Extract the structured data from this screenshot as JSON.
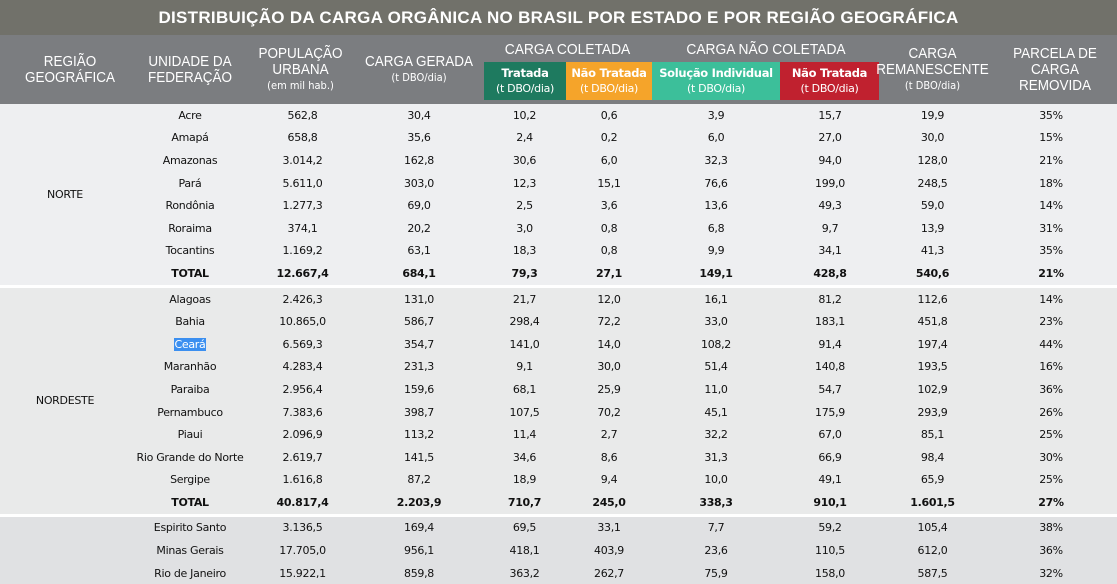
{
  "title": "DISTRIBUIÇÃO DA CARGA ORGÂNICA NO BRASIL POR ESTADO E POR REGIÃO GEOGRÁFICA",
  "headers": {
    "regiao": [
      "REGIÃO",
      "GEOGRÁFICA"
    ],
    "uf": [
      "UNIDADE DA",
      "FEDERAÇÃO"
    ],
    "pop": [
      "POPULAÇÃO",
      "URBANA"
    ],
    "pop_unit": "(em mil hab.)",
    "carga_gerada": "CARGA GERADA",
    "unit": "(t DBO/dia)",
    "coletada": "CARGA COLETADA",
    "nao_coletada": "CARGA NÃO COLETADA",
    "tratada": "Tratada",
    "nao_tratada": "Não Tratada",
    "solucao": "Solução Individual",
    "nao_tratada2": "Não Tratada",
    "remanescente": [
      "CARGA",
      "REMANESCENTE"
    ],
    "parcela": [
      "PARCELA DE",
      "CARGA",
      "REMOVIDA"
    ]
  },
  "colors": {
    "tratada": "#1e7a5f",
    "nao_tratada": "#f5a42a",
    "solucao": "#3cbf9a",
    "nao_tratada2": "#c0212f"
  },
  "regions": [
    {
      "name": "NORTE",
      "bg": "#eeeff1",
      "rows": [
        [
          "Acre",
          "562,8",
          "30,4",
          "10,2",
          "0,6",
          "3,9",
          "15,7",
          "19,9",
          "35%"
        ],
        [
          "Amapá",
          "658,8",
          "35,6",
          "2,4",
          "0,2",
          "6,0",
          "27,0",
          "30,0",
          "15%"
        ],
        [
          "Amazonas",
          "3.014,2",
          "162,8",
          "30,6",
          "6,0",
          "32,3",
          "94,0",
          "128,0",
          "21%"
        ],
        [
          "Pará",
          "5.611,0",
          "303,0",
          "12,3",
          "15,1",
          "76,6",
          "199,0",
          "248,5",
          "18%"
        ],
        [
          "Rondônia",
          "1.277,3",
          "69,0",
          "2,5",
          "3,6",
          "13,6",
          "49,3",
          "59,0",
          "14%"
        ],
        [
          "Roraima",
          "374,1",
          "20,2",
          "3,0",
          "0,8",
          "6,8",
          "9,7",
          "13,9",
          "31%"
        ],
        [
          "Tocantins",
          "1.169,2",
          "63,1",
          "18,3",
          "0,8",
          "9,9",
          "34,1",
          "41,3",
          "35%"
        ],
        [
          "TOTAL",
          "12.667,4",
          "684,1",
          "79,3",
          "27,1",
          "149,1",
          "428,8",
          "540,6",
          "21%"
        ]
      ]
    },
    {
      "name": "NORDESTE",
      "bg": "#e9eaea",
      "rows": [
        [
          "Alagoas",
          "2.426,3",
          "131,0",
          "21,7",
          "12,0",
          "16,1",
          "81,2",
          "112,6",
          "14%"
        ],
        [
          "Bahia",
          "10.865,0",
          "586,7",
          "298,4",
          "72,2",
          "33,0",
          "183,1",
          "451,8",
          "23%"
        ],
        [
          "Ceará",
          "6.569,3",
          "354,7",
          "141,0",
          "14,0",
          "108,2",
          "91,4",
          "197,4",
          "44%"
        ],
        [
          "Maranhão",
          "4.283,4",
          "231,3",
          "9,1",
          "30,0",
          "51,4",
          "140,8",
          "193,5",
          "16%"
        ],
        [
          "Paraiba",
          "2.956,4",
          "159,6",
          "68,1",
          "25,9",
          "11,0",
          "54,7",
          "102,9",
          "36%"
        ],
        [
          "Pernambuco",
          "7.383,6",
          "398,7",
          "107,5",
          "70,2",
          "45,1",
          "175,9",
          "293,9",
          "26%"
        ],
        [
          "Piaui",
          "2.096,9",
          "113,2",
          "11,4",
          "2,7",
          "32,2",
          "67,0",
          "85,1",
          "25%"
        ],
        [
          "Rio Grande do Norte",
          "2.619,7",
          "141,5",
          "34,6",
          "8,6",
          "31,3",
          "66,9",
          "98,4",
          "30%"
        ],
        [
          "Sergipe",
          "1.616,8",
          "87,2",
          "18,9",
          "9,4",
          "10,0",
          "49,1",
          "65,9",
          "25%"
        ],
        [
          "TOTAL",
          "40.817,4",
          "2.203,9",
          "710,7",
          "245,0",
          "338,3",
          "910,1",
          "1.601,5",
          "27%"
        ]
      ]
    },
    {
      "name": "",
      "bg": "#e0e1e3",
      "rows": [
        [
          "Espirito Santo",
          "3.136,5",
          "169,4",
          "69,5",
          "33,1",
          "7,7",
          "59,2",
          "105,4",
          "38%"
        ],
        [
          "Minas Gerais",
          "17.705,0",
          "956,1",
          "418,1",
          "403,9",
          "23,6",
          "110,5",
          "612,0",
          "36%"
        ],
        [
          "Rio de Janeiro",
          "15.922,1",
          "859,8",
          "363,2",
          "262,7",
          "75,9",
          "158,0",
          "587,5",
          "32%"
        ]
      ]
    }
  ],
  "selected_cell": "Ceará"
}
